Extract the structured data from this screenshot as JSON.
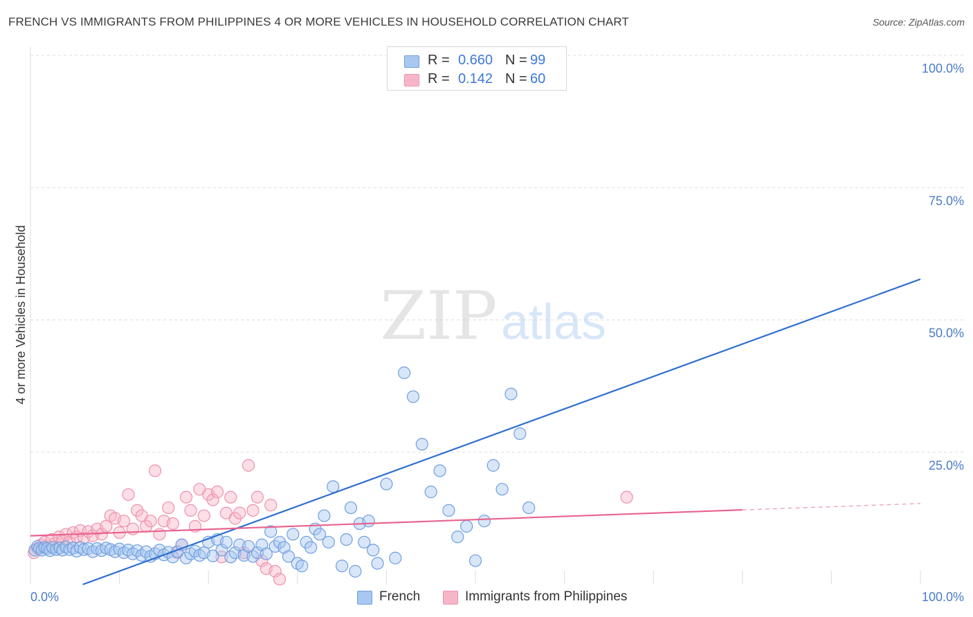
{
  "title": "FRENCH VS IMMIGRANTS FROM PHILIPPINES 4 OR MORE VEHICLES IN HOUSEHOLD CORRELATION CHART",
  "source": "Source: ZipAtlas.com",
  "watermark": {
    "zip": "ZIP",
    "atlas": "atlas"
  },
  "legend": {
    "rows": [
      {
        "r_label": "R =",
        "r_value": "0.660",
        "n_label": "N =",
        "n_value": "99"
      },
      {
        "r_label": "R =",
        "r_value": "0.142",
        "n_label": "N =",
        "n_value": "60"
      }
    ]
  },
  "bottom_legend": [
    "French",
    "Immigrants from Philippines"
  ],
  "colors": {
    "french_fill": "#a8c8f0",
    "french_stroke": "#6f9ee0",
    "french_line": "#2f6fd0",
    "phil_fill": "#f6b6c8",
    "phil_stroke": "#ee91ad",
    "phil_line": "#e8628e",
    "tick": "#4a7bc8",
    "grid": "#dcdcdc"
  },
  "chart_data": {
    "type": "scatter",
    "title": "FRENCH VS IMMIGRANTS FROM PHILIPPINES 4 OR MORE VEHICLES IN HOUSEHOLD CORRELATION CHART",
    "xlabel": "",
    "ylabel": "4 or more Vehicles in Household",
    "xlim": [
      0,
      100
    ],
    "ylim": [
      0,
      100
    ],
    "x_tick_labels": [
      "0.0%",
      "100.0%"
    ],
    "y_ticks": [
      25,
      50,
      75,
      100
    ],
    "y_tick_labels": [
      "25.0%",
      "50.0%",
      "75.0%",
      "100.0%"
    ],
    "grid": true,
    "legend_placement": "top-center",
    "series": [
      {
        "name": "French",
        "r": 0.66,
        "n": 99,
        "trend": {
          "x": [
            0,
            100
          ],
          "y": [
            -3.6,
            57.7
          ]
        },
        "points": [
          [
            0.5,
            6.5
          ],
          [
            0.8,
            7.2
          ],
          [
            1.0,
            6.8
          ],
          [
            1.3,
            6.5
          ],
          [
            1.6,
            7.0
          ],
          [
            1.9,
            6.8
          ],
          [
            2.2,
            6.4
          ],
          [
            2.5,
            7.0
          ],
          [
            2.9,
            6.6
          ],
          [
            3.3,
            6.9
          ],
          [
            3.6,
            6.5
          ],
          [
            4.0,
            7.1
          ],
          [
            4.4,
            6.6
          ],
          [
            4.8,
            6.9
          ],
          [
            5.2,
            6.3
          ],
          [
            5.6,
            7.0
          ],
          [
            6.0,
            6.6
          ],
          [
            6.5,
            6.8
          ],
          [
            7.0,
            6.2
          ],
          [
            7.5,
            6.8
          ],
          [
            8.0,
            6.4
          ],
          [
            8.5,
            6.9
          ],
          [
            9.0,
            6.6
          ],
          [
            9.5,
            6.2
          ],
          [
            10.0,
            6.7
          ],
          [
            10.5,
            6.0
          ],
          [
            11.0,
            6.5
          ],
          [
            11.5,
            5.8
          ],
          [
            12.0,
            6.4
          ],
          [
            12.5,
            5.5
          ],
          [
            13.0,
            6.2
          ],
          [
            13.5,
            5.3
          ],
          [
            14.0,
            5.8
          ],
          [
            14.5,
            6.5
          ],
          [
            15.0,
            5.6
          ],
          [
            15.5,
            6.1
          ],
          [
            16.0,
            5.2
          ],
          [
            16.5,
            6.2
          ],
          [
            17.0,
            7.5
          ],
          [
            17.5,
            5.0
          ],
          [
            18.0,
            5.8
          ],
          [
            18.5,
            6.3
          ],
          [
            19.0,
            5.5
          ],
          [
            19.5,
            6.0
          ],
          [
            20.0,
            8.0
          ],
          [
            20.5,
            5.4
          ],
          [
            21.0,
            8.5
          ],
          [
            21.5,
            6.5
          ],
          [
            22.0,
            8.0
          ],
          [
            22.5,
            5.2
          ],
          [
            23.0,
            6.0
          ],
          [
            23.5,
            7.5
          ],
          [
            24.0,
            5.5
          ],
          [
            24.5,
            7.2
          ],
          [
            25.0,
            5.3
          ],
          [
            25.5,
            6.0
          ],
          [
            26.0,
            7.5
          ],
          [
            26.5,
            5.8
          ],
          [
            27.0,
            10.0
          ],
          [
            27.5,
            7.2
          ],
          [
            28.0,
            8.0
          ],
          [
            28.5,
            7.0
          ],
          [
            29.0,
            5.3
          ],
          [
            29.5,
            9.5
          ],
          [
            30.0,
            4.0
          ],
          [
            30.5,
            3.5
          ],
          [
            31.0,
            8.0
          ],
          [
            31.5,
            7.0
          ],
          [
            32.0,
            10.5
          ],
          [
            32.5,
            9.5
          ],
          [
            33.0,
            13.0
          ],
          [
            33.5,
            8.0
          ],
          [
            34.0,
            18.5
          ],
          [
            35.0,
            3.5
          ],
          [
            35.5,
            8.5
          ],
          [
            36.0,
            14.5
          ],
          [
            36.5,
            2.5
          ],
          [
            37.0,
            11.5
          ],
          [
            37.5,
            8.0
          ],
          [
            38.0,
            12.0
          ],
          [
            38.5,
            6.5
          ],
          [
            39.0,
            4.0
          ],
          [
            40.0,
            19.0
          ],
          [
            41.0,
            5.0
          ],
          [
            42.0,
            40.0
          ],
          [
            43.0,
            35.5
          ],
          [
            44.0,
            26.5
          ],
          [
            45.0,
            17.5
          ],
          [
            46.0,
            21.5
          ],
          [
            47.0,
            14.0
          ],
          [
            48.0,
            9.0
          ],
          [
            49.0,
            11.0
          ],
          [
            50.0,
            4.5
          ],
          [
            51.0,
            12.0
          ],
          [
            52.0,
            22.5
          ],
          [
            53.0,
            18.0
          ],
          [
            54.0,
            36.0
          ],
          [
            55.0,
            28.5
          ],
          [
            56.0,
            14.5
          ]
        ]
      },
      {
        "name": "Immigrants from Philippines",
        "r": 0.142,
        "n": 60,
        "trend": {
          "x": [
            0,
            80
          ],
          "y": [
            9.2,
            14.1
          ],
          "dashed_to": [
            100,
            15.3
          ]
        },
        "points": [
          [
            0.4,
            6.0
          ],
          [
            0.8,
            6.8
          ],
          [
            1.2,
            7.5
          ],
          [
            1.6,
            8.0
          ],
          [
            2.0,
            7.2
          ],
          [
            2.4,
            8.5
          ],
          [
            2.8,
            7.8
          ],
          [
            3.2,
            9.0
          ],
          [
            3.6,
            8.2
          ],
          [
            4.0,
            9.5
          ],
          [
            4.4,
            8.0
          ],
          [
            4.8,
            9.8
          ],
          [
            5.2,
            9.0
          ],
          [
            5.6,
            10.2
          ],
          [
            6.0,
            8.8
          ],
          [
            6.5,
            10.0
          ],
          [
            7.0,
            9.2
          ],
          [
            7.5,
            10.5
          ],
          [
            8.0,
            9.5
          ],
          [
            8.5,
            11.0
          ],
          [
            9.0,
            13.0
          ],
          [
            9.5,
            12.5
          ],
          [
            10.0,
            9.8
          ],
          [
            10.5,
            12.0
          ],
          [
            11.0,
            17.0
          ],
          [
            11.5,
            10.5
          ],
          [
            12.0,
            14.0
          ],
          [
            12.5,
            13.0
          ],
          [
            13.0,
            11.0
          ],
          [
            13.5,
            12.0
          ],
          [
            14.0,
            21.5
          ],
          [
            14.5,
            9.5
          ],
          [
            15.0,
            12.0
          ],
          [
            15.5,
            14.5
          ],
          [
            16.0,
            11.5
          ],
          [
            16.5,
            6.0
          ],
          [
            17.0,
            7.5
          ],
          [
            17.5,
            16.5
          ],
          [
            18.0,
            14.0
          ],
          [
            18.5,
            11.0
          ],
          [
            19.0,
            18.0
          ],
          [
            19.5,
            13.0
          ],
          [
            20.0,
            17.0
          ],
          [
            20.5,
            16.0
          ],
          [
            21.0,
            17.5
          ],
          [
            21.5,
            5.2
          ],
          [
            22.0,
            13.5
          ],
          [
            22.5,
            16.5
          ],
          [
            23.0,
            12.5
          ],
          [
            23.5,
            13.5
          ],
          [
            24.0,
            6.0
          ],
          [
            24.5,
            22.5
          ],
          [
            25.0,
            14.0
          ],
          [
            25.5,
            16.5
          ],
          [
            26.0,
            4.5
          ],
          [
            26.5,
            3.0
          ],
          [
            27.0,
            15.0
          ],
          [
            27.5,
            2.5
          ],
          [
            28.0,
            1.0
          ],
          [
            67.0,
            16.5
          ]
        ]
      }
    ]
  }
}
